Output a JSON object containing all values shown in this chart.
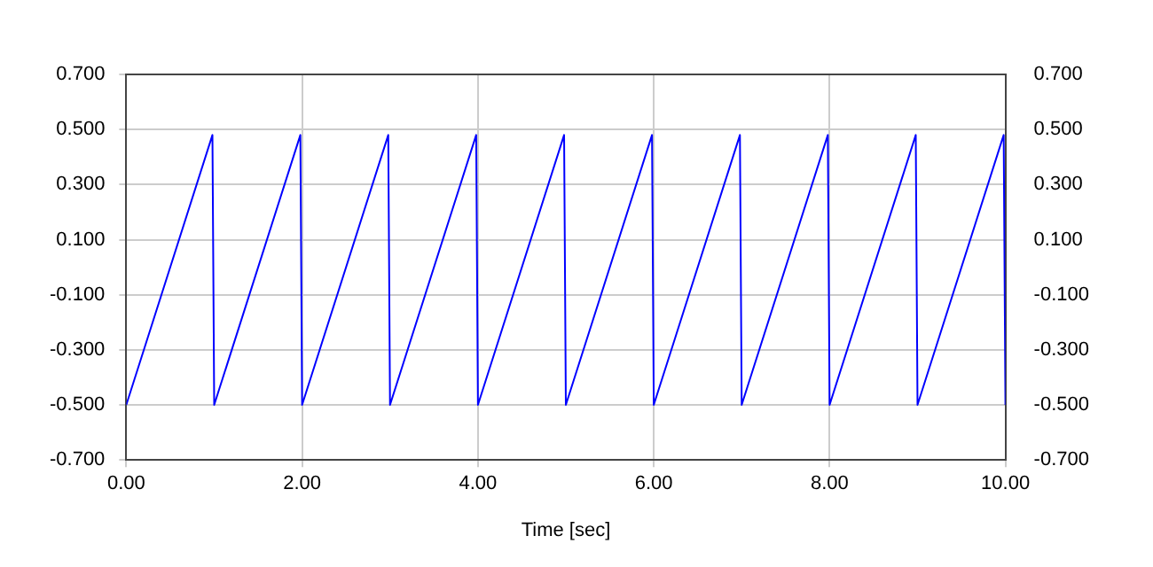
{
  "chart_data": {
    "type": "line",
    "xlabel": "Time [sec]",
    "series": [
      {
        "color": "#0000ff",
        "x": [
          0,
          0.98,
          1,
          1.98,
          2,
          2.98,
          3,
          3.98,
          4,
          4.98,
          5,
          5.98,
          6,
          6.98,
          7,
          7.98,
          8,
          8.98,
          9,
          9.98,
          10
        ],
        "values": [
          -0.5,
          0.48,
          -0.5,
          0.48,
          -0.5,
          0.48,
          -0.5,
          0.48,
          -0.5,
          0.48,
          -0.5,
          0.48,
          -0.5,
          0.48,
          -0.5,
          0.48,
          -0.5,
          0.48,
          -0.5,
          0.48,
          -0.5
        ]
      }
    ],
    "xlim": [
      0,
      10
    ],
    "xticks": [
      {
        "value": 0,
        "label": "0.00"
      },
      {
        "value": 2,
        "label": "2.00"
      },
      {
        "value": 4,
        "label": "4.00"
      },
      {
        "value": 6,
        "label": "6.00"
      },
      {
        "value": 8,
        "label": "8.00"
      },
      {
        "value": 10,
        "label": "10.00"
      }
    ],
    "ylim": [
      -0.7,
      0.7
    ],
    "yticks": [
      {
        "value": -0.7,
        "label": "-0.700"
      },
      {
        "value": -0.5,
        "label": "-0.500"
      },
      {
        "value": -0.3,
        "label": "-0.300"
      },
      {
        "value": -0.1,
        "label": "-0.100"
      },
      {
        "value": 0.1,
        "label": "0.100"
      },
      {
        "value": 0.3,
        "label": "0.300"
      },
      {
        "value": 0.5,
        "label": "0.500"
      },
      {
        "value": 0.7,
        "label": "0.700"
      }
    ],
    "y2lim": [
      -0.7,
      0.7
    ],
    "y2ticks": [
      {
        "value": -0.7,
        "label": "-0.700"
      },
      {
        "value": -0.5,
        "label": "-0.500"
      },
      {
        "value": -0.3,
        "label": "-0.300"
      },
      {
        "value": -0.1,
        "label": "-0.100"
      },
      {
        "value": 0.1,
        "label": "0.100"
      },
      {
        "value": 0.3,
        "label": "0.300"
      },
      {
        "value": 0.5,
        "label": "0.500"
      },
      {
        "value": 0.7,
        "label": "0.700"
      }
    ],
    "grid": true,
    "legend": false,
    "marker": "none",
    "line_style": "solid"
  }
}
